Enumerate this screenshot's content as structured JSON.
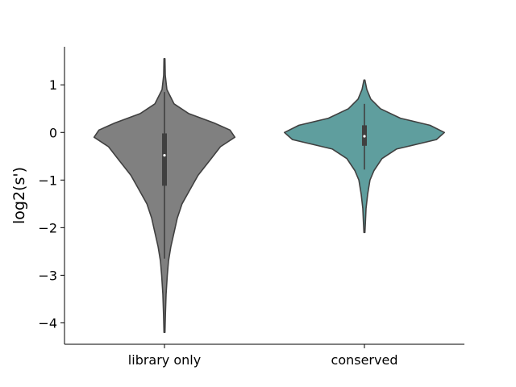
{
  "chart_data": {
    "type": "violin",
    "title": "",
    "xlabel": "",
    "ylabel": "log2(s')",
    "ylim": [
      -4.45,
      1.8
    ],
    "yticks": [
      1,
      0,
      -1,
      -2,
      -3,
      -4
    ],
    "ytick_labels": [
      "1",
      "0",
      "−1",
      "−2",
      "−3",
      "−4"
    ],
    "categories": [
      "library only",
      "conserved"
    ],
    "grid": false,
    "legend": "none",
    "colors": {
      "library only": "#808080",
      "conserved": "#5f9e9e",
      "outline": "#404040",
      "median_dot": "#ffffff"
    },
    "violins": [
      {
        "category": "library only",
        "min": -4.2,
        "max": 1.55,
        "q1": -1.12,
        "median": -0.48,
        "q3": -0.02,
        "whisker_low": -2.65,
        "whisker_high": 0.85,
        "density_profile": [
          [
            1.55,
            0.006
          ],
          [
            1.2,
            0.01
          ],
          [
            0.9,
            0.03
          ],
          [
            0.6,
            0.12
          ],
          [
            0.4,
            0.3
          ],
          [
            0.2,
            0.62
          ],
          [
            0.05,
            0.82
          ],
          [
            -0.1,
            0.88
          ],
          [
            -0.3,
            0.7
          ],
          [
            -0.6,
            0.56
          ],
          [
            -0.9,
            0.42
          ],
          [
            -1.2,
            0.32
          ],
          [
            -1.5,
            0.22
          ],
          [
            -1.8,
            0.16
          ],
          [
            -2.1,
            0.12
          ],
          [
            -2.4,
            0.08
          ],
          [
            -2.7,
            0.05
          ],
          [
            -3.0,
            0.035
          ],
          [
            -3.4,
            0.02
          ],
          [
            -3.8,
            0.012
          ],
          [
            -4.2,
            0.006
          ]
        ]
      },
      {
        "category": "conserved",
        "min": -2.1,
        "max": 1.1,
        "q1": -0.28,
        "median": -0.08,
        "q3": 0.15,
        "whisker_low": -0.78,
        "whisker_high": 0.6,
        "density_profile": [
          [
            1.1,
            0.006
          ],
          [
            0.9,
            0.03
          ],
          [
            0.7,
            0.08
          ],
          [
            0.5,
            0.2
          ],
          [
            0.3,
            0.45
          ],
          [
            0.15,
            0.82
          ],
          [
            0.0,
            1.0
          ],
          [
            -0.15,
            0.9
          ],
          [
            -0.35,
            0.4
          ],
          [
            -0.55,
            0.22
          ],
          [
            -0.8,
            0.12
          ],
          [
            -1.0,
            0.07
          ],
          [
            -1.3,
            0.04
          ],
          [
            -1.6,
            0.02
          ],
          [
            -1.9,
            0.012
          ],
          [
            -2.1,
            0.006
          ]
        ]
      }
    ]
  }
}
